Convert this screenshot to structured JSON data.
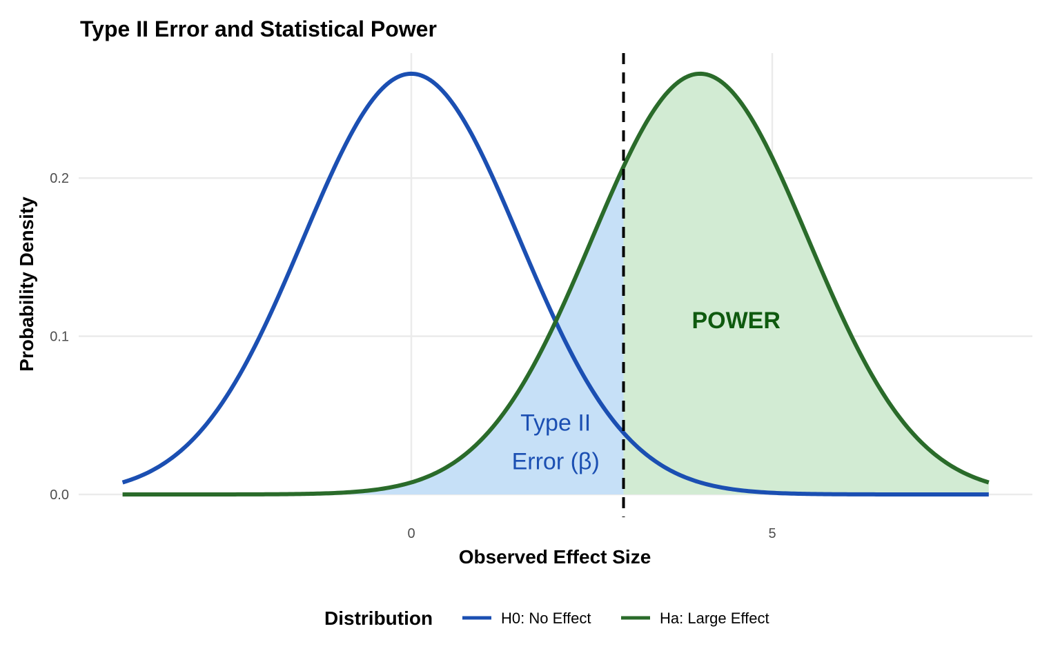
{
  "chart_data": {
    "type": "line",
    "title": "Type II Error and Statistical Power",
    "xlabel": "Observed Effect Size",
    "ylabel": "Probability Density",
    "xlim": [
      -4,
      8
    ],
    "ylim": [
      0,
      0.266
    ],
    "x_ticks": [
      0,
      5
    ],
    "x_tick_labels": [
      "0",
      "5"
    ],
    "y_ticks": [
      0,
      0.1,
      0.2
    ],
    "y_tick_labels": [
      "0.0",
      "0.1",
      "0.2"
    ],
    "grid": true,
    "legend": {
      "title": "Distribution",
      "placement": "bottom",
      "entries": [
        "H0: No Effect",
        "Ha: Large Effect"
      ]
    },
    "series": [
      {
        "name": "H0: No Effect",
        "distribution": "normal",
        "mean": 0,
        "sd": 1.5,
        "color": "#1b4fb2"
      },
      {
        "name": "Ha: Large Effect",
        "distribution": "normal",
        "mean": 4,
        "sd": 1.5,
        "color": "#2a6b2a"
      }
    ],
    "critical_value": 2.94,
    "regions": [
      {
        "label": "Type II\nError (β)",
        "from": -4,
        "to": 2.94,
        "series": "Ha: Large Effect",
        "fill": "#c6e0f7",
        "text_color": "#1b4fb2",
        "label_x": 2.0,
        "label_y": 0.032
      },
      {
        "label": "POWER",
        "from": 2.94,
        "to": 8,
        "series": "Ha: Large Effect",
        "fill": "#d2ebd3",
        "text_color": "#0f5a0f",
        "label_x": 4.5,
        "label_y": 0.109
      }
    ]
  }
}
